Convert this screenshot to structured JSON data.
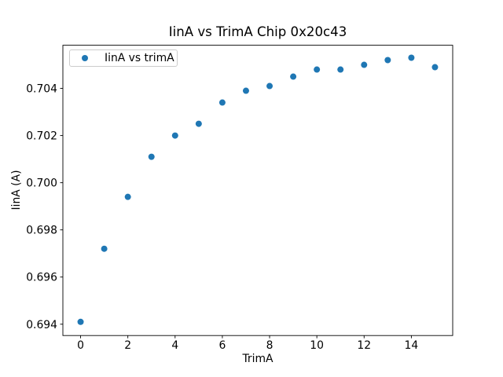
{
  "window": {
    "background_color": "#ffffff"
  },
  "chart_data": {
    "type": "scatter",
    "title": "IinA vs TrimA Chip 0x20c43",
    "xlabel": "TrimA",
    "ylabel": "IinA (A)",
    "grid": false,
    "legend_position": "upper left",
    "xlim": [
      -0.75,
      15.75
    ],
    "ylim": [
      0.69352,
      0.70583
    ],
    "x_ticks": [
      {
        "value": 0,
        "label": "0"
      },
      {
        "value": 2,
        "label": "2"
      },
      {
        "value": 4,
        "label": "4"
      },
      {
        "value": 6,
        "label": "6"
      },
      {
        "value": 8,
        "label": "8"
      },
      {
        "value": 10,
        "label": "10"
      },
      {
        "value": 12,
        "label": "12"
      },
      {
        "value": 14,
        "label": "14"
      }
    ],
    "y_ticks": [
      {
        "value": 0.694,
        "label": "0.694"
      },
      {
        "value": 0.696,
        "label": "0.696"
      },
      {
        "value": 0.698,
        "label": "0.698"
      },
      {
        "value": 0.7,
        "label": "0.700"
      },
      {
        "value": 0.702,
        "label": "0.702"
      },
      {
        "value": 0.704,
        "label": "0.704"
      }
    ],
    "series": [
      {
        "name": "IinA vs trimA",
        "color": "#1f77b4",
        "marker": "circle",
        "marker_radius_px": 4,
        "x": [
          0,
          1,
          2,
          3,
          4,
          5,
          6,
          7,
          8,
          9,
          10,
          11,
          12,
          13,
          14,
          15
        ],
        "y": [
          0.6941,
          0.6972,
          0.6994,
          0.7011,
          0.702,
          0.7025,
          0.7034,
          0.7039,
          0.7041,
          0.7045,
          0.7048,
          0.7048,
          0.705,
          0.7052,
          0.7053,
          0.7049
        ]
      }
    ],
    "colors": {
      "background": "#ffffff",
      "text": "#000000",
      "spine": "#000000",
      "legend_border": "#cccccc"
    }
  }
}
